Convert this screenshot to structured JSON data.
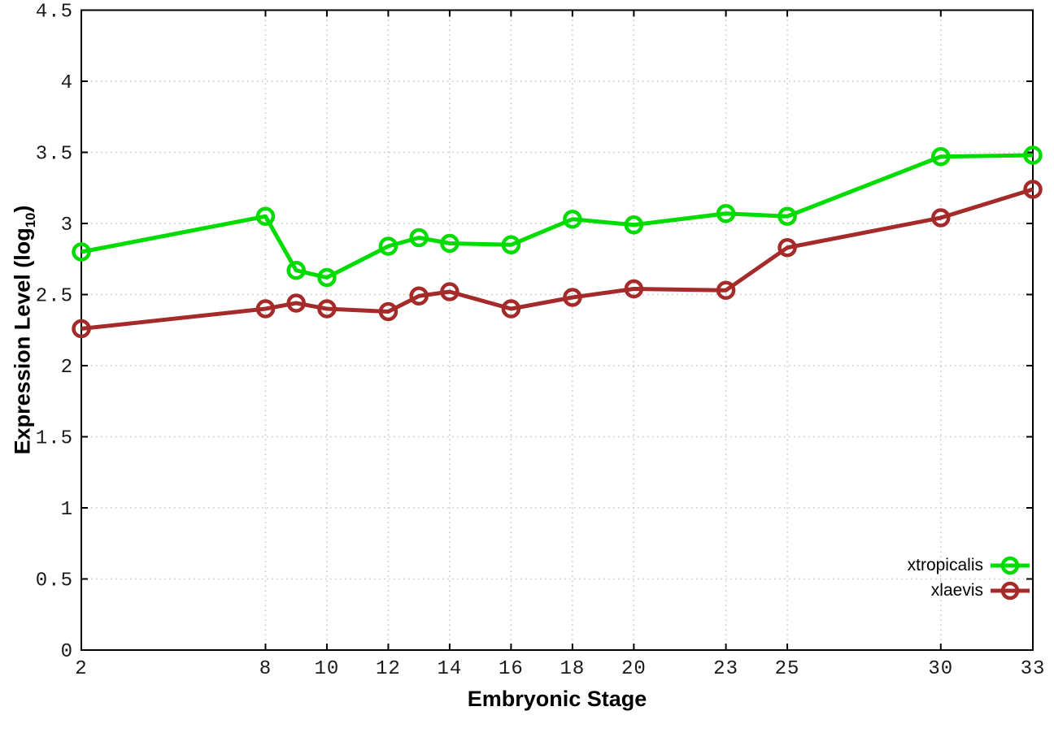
{
  "chart_data": {
    "type": "line",
    "title": "",
    "xlabel": "Embryonic Stage",
    "ylabel": {
      "main": "Expression Level (log",
      "sub": "10",
      "close": ")"
    },
    "x": [
      2,
      8,
      9,
      10,
      12,
      13,
      14,
      16,
      18,
      20,
      23,
      25,
      30,
      33
    ],
    "series": [
      {
        "name": "xtropicalis",
        "color": "#00DC00",
        "values": [
          2.8,
          3.05,
          2.67,
          2.62,
          2.84,
          2.9,
          2.86,
          2.85,
          3.03,
          2.99,
          3.07,
          3.05,
          3.47,
          3.48
        ]
      },
      {
        "name": "xlaevis",
        "color": "#A52A2A",
        "values": [
          2.26,
          2.4,
          2.44,
          2.4,
          2.38,
          2.49,
          2.52,
          2.4,
          2.48,
          2.54,
          2.53,
          2.83,
          3.04,
          3.24
        ]
      }
    ],
    "xlim": [
      2,
      33
    ],
    "ylim": [
      0,
      4.5
    ],
    "xticks": [
      2,
      8,
      10,
      12,
      14,
      16,
      18,
      20,
      23,
      25,
      30,
      33
    ],
    "yticks": [
      "0",
      "0.5",
      "1",
      "1.5",
      "2",
      "2.5",
      "3",
      "3.5",
      "4",
      "4.5"
    ],
    "grid": true,
    "legend_position": "bottom-right",
    "marker": "open-circle"
  },
  "colors": {
    "background": "#FFFFFF",
    "border": "#000000",
    "grid": "#C4C4C4",
    "tick_text": "#1A1A1A"
  }
}
